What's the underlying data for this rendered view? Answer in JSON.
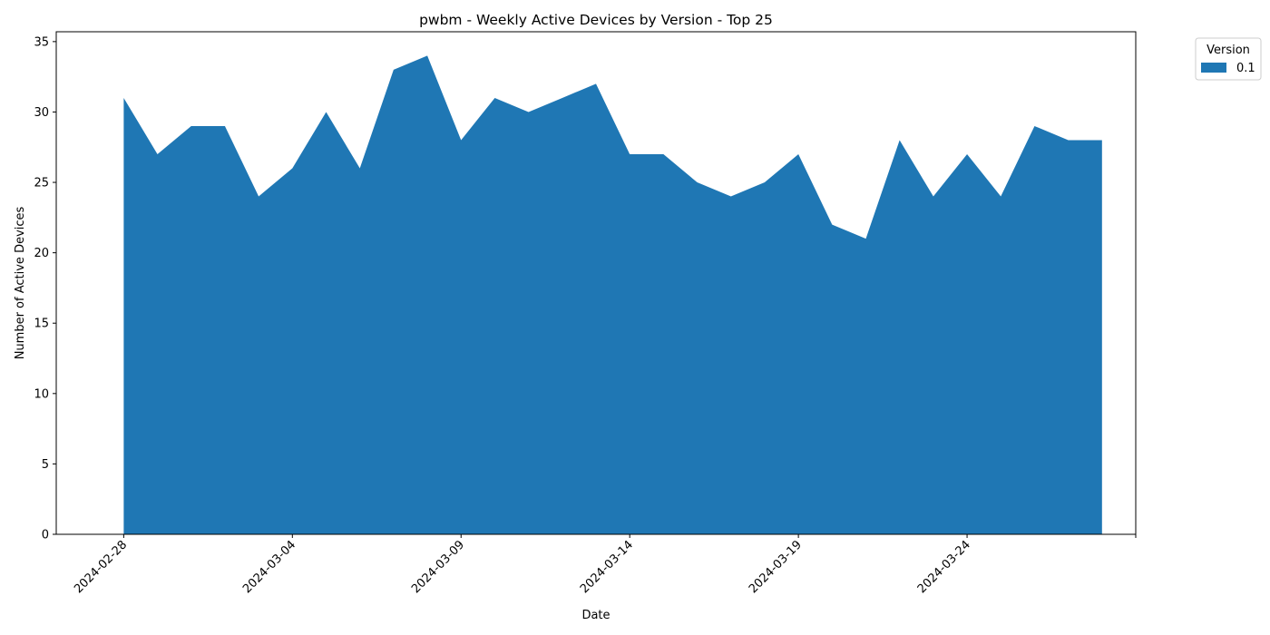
{
  "chart_data": {
    "type": "area",
    "title": "pwbm - Weekly Active Devices by Version - Top 25",
    "xlabel": "Date",
    "ylabel": "Number of Active Devices",
    "x": [
      "2024-02-28",
      "2024-02-29",
      "2024-03-01",
      "2024-03-02",
      "2024-03-03",
      "2024-03-04",
      "2024-03-05",
      "2024-03-06",
      "2024-03-07",
      "2024-03-08",
      "2024-03-09",
      "2024-03-10",
      "2024-03-11",
      "2024-03-12",
      "2024-03-13",
      "2024-03-14",
      "2024-03-15",
      "2024-03-16",
      "2024-03-17",
      "2024-03-18",
      "2024-03-19",
      "2024-03-20",
      "2024-03-21",
      "2024-03-22",
      "2024-03-23",
      "2024-03-24",
      "2024-03-25",
      "2024-03-26",
      "2024-03-27",
      "2024-03-28"
    ],
    "series": [
      {
        "name": "0.1",
        "color": "#1f77b4",
        "values": [
          31,
          27,
          29,
          29,
          24,
          26,
          30,
          26,
          33,
          34,
          28,
          31,
          30,
          31,
          32,
          27,
          27,
          25,
          24,
          25,
          27,
          22,
          21,
          28,
          24,
          27,
          24,
          29,
          28,
          28
        ]
      }
    ],
    "x_ticks": [
      "2024-02-28",
      "2024-03-04",
      "2024-03-09",
      "2024-03-14",
      "2024-03-19",
      "2024-03-24",
      ""
    ],
    "x_tick_dates": [
      "2024-02-28",
      "2024-03-04",
      "2024-03-09",
      "2024-03-14",
      "2024-03-19",
      "2024-03-24",
      "2024-03-29"
    ],
    "xlim": [
      "2024-02-26",
      "2024-03-29"
    ],
    "y_ticks": [
      0,
      5,
      10,
      15,
      20,
      25,
      30,
      35
    ],
    "ylim": [
      0,
      35.7
    ],
    "grid": false,
    "legend": {
      "title": "Version",
      "placement": "upper-right-outside"
    }
  }
}
